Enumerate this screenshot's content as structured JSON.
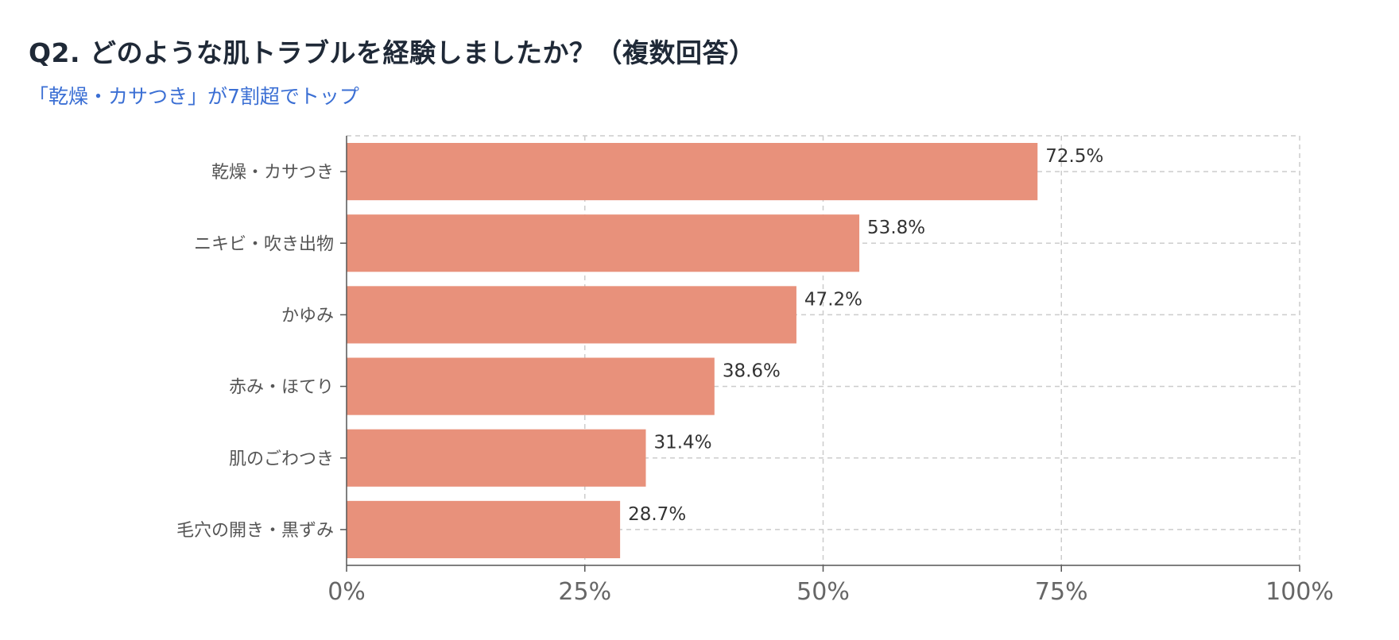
{
  "chart_data": {
    "type": "bar",
    "orientation": "horizontal",
    "title": "Q2. どのような肌トラブルを経験しましたか？（複数回答）",
    "subtitle": "「乾燥・カサつき」が7割超でトップ",
    "categories": [
      "乾燥・カサつき",
      "ニキビ・吹き出物",
      "かゆみ",
      "赤み・ほてり",
      "肌のごわつき",
      "毛穴の開き・黒ずみ"
    ],
    "values": [
      72.5,
      53.8,
      47.2,
      38.6,
      31.4,
      28.7
    ],
    "value_labels": [
      "72.5%",
      "53.8%",
      "47.2%",
      "38.6%",
      "31.4%",
      "28.7%"
    ],
    "x_ticks": [
      0,
      25,
      50,
      75,
      100
    ],
    "x_tick_labels": [
      "0%",
      "25%",
      "50%",
      "75%",
      "100%"
    ],
    "xlim": [
      0,
      100
    ],
    "xlabel": "",
    "ylabel": "",
    "grid": true,
    "bar_color": "#e8917b"
  }
}
